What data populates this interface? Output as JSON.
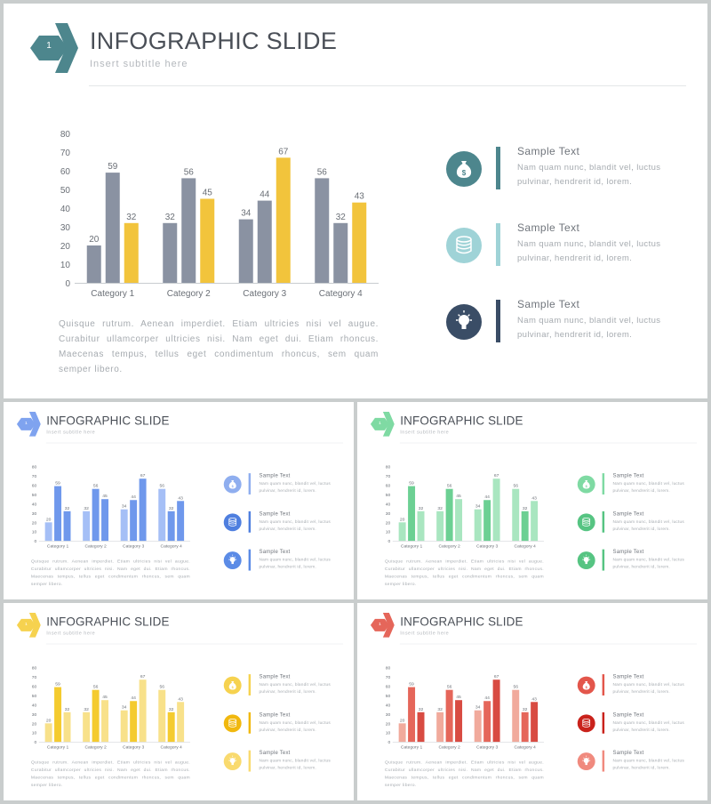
{
  "slide": {
    "badge_number": "1",
    "title": "INFOGRAPHIC SLIDE",
    "subtitle": "Insert  subtitle  here",
    "body": "Quisque rutrum. Aenean imperdiet. Etiam ultricies nisi vel augue. Curabitur ullamcorper ultricies nisi. Nam eget dui. Etiam rhoncus. Maecenas tempus, tellus eget condimentum rhoncus, sem quam semper libero.",
    "features": [
      {
        "title": "Sample  Text",
        "desc": "Nam  quam  nunc,  blandit  vel, luctus  pulvinar,  hendrerit  id,  lorem.",
        "icon": "money-bag-icon"
      },
      {
        "title": "Sample  Text",
        "desc": "Nam  quam  nunc,  blandit  vel, luctus  pulvinar,  hendrerit  id,  lorem.",
        "icon": "coin-stack-icon"
      },
      {
        "title": "Sample  Text",
        "desc": "Nam  quam  nunc,  blandit  vel, luctus  pulvinar,  hendrerit  id,  lorem.",
        "icon": "lightbulb-icon"
      }
    ]
  },
  "chart_data": {
    "type": "bar",
    "categories": [
      "Category 1",
      "Category 2",
      "Category 3",
      "Category 4"
    ],
    "series": [
      {
        "values": [
          20,
          32,
          34,
          56
        ]
      },
      {
        "values": [
          59,
          56,
          44,
          32
        ]
      },
      {
        "values": [
          32,
          45,
          67,
          43
        ]
      }
    ],
    "y_ticks": [
      0,
      10,
      20,
      30,
      40,
      50,
      60,
      70,
      80
    ],
    "ylim": [
      0,
      80
    ],
    "grid": false,
    "data_labels": true
  },
  "themes": [
    {
      "id": "main",
      "series_colors": [
        "#8a92a2",
        "#8a92a2",
        "#f2c43c"
      ],
      "accent": "#4d868d",
      "feature_colors": [
        "#4d868d",
        "#9fd3d7",
        "#3a4d66"
      ]
    },
    {
      "id": "blue",
      "series_colors": [
        "#a5bff6",
        "#6f98ec",
        "#6f98ec"
      ],
      "accent": "#7fa3ef",
      "feature_colors": [
        "#8faeef",
        "#4f7fdf",
        "#5b8be6"
      ]
    },
    {
      "id": "green",
      "series_colors": [
        "#a9e6c0",
        "#6cd093",
        "#a9e6c0"
      ],
      "accent": "#7fdaa3",
      "feature_colors": [
        "#7fdaa3",
        "#56c482",
        "#56c482"
      ]
    },
    {
      "id": "yellow",
      "series_colors": [
        "#f8e18a",
        "#f4cb2f",
        "#f8e18a"
      ],
      "accent": "#f6d24f",
      "feature_colors": [
        "#f6d24f",
        "#f1b80e",
        "#f9da6e"
      ]
    },
    {
      "id": "red",
      "series_colors": [
        "#f1aa9c",
        "#e5665a",
        "#d84b42"
      ],
      "accent": "#e5665a",
      "feature_colors": [
        "#e3564b",
        "#c9221b",
        "#f08a7e"
      ]
    }
  ]
}
